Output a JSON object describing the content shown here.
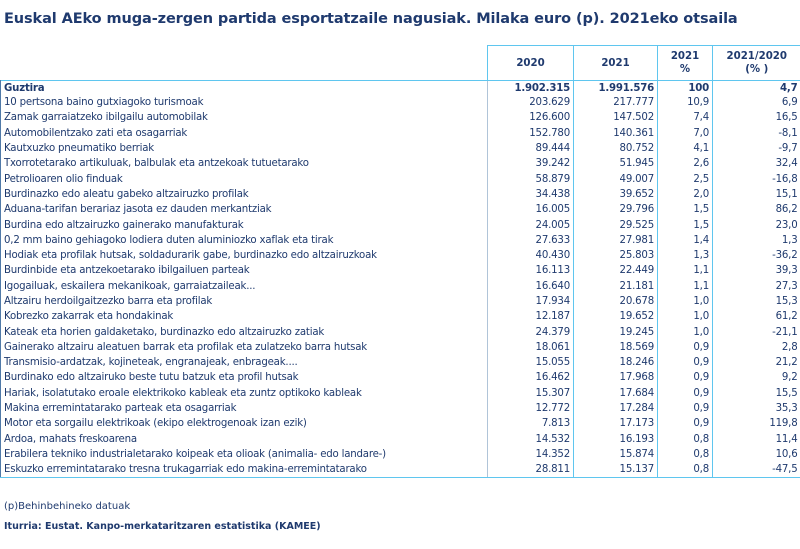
{
  "title": "Euskal AEko muga-zergen partida esportatzaile nagusiak. Milaka euro (p). 2021eko otsaila",
  "columns": [
    "2020",
    "2021",
    "2021\n%",
    "2021/2020\n(% )"
  ],
  "total": {
    "label": "Guztira",
    "v2020": "1.902.315",
    "v2021": "1.991.576",
    "pct": "100",
    "change": "4,7"
  },
  "rows": [
    [
      "10 pertsona baino gutxiagoko turismoak",
      "203.629",
      "217.777",
      "10,9",
      "6,9"
    ],
    [
      "Zamak garraiatzeko ibilgailu automobilak",
      "126.600",
      "147.502",
      "7,4",
      "16,5"
    ],
    [
      "Automobilentzako zati eta osagarriak",
      "152.780",
      "140.361",
      "7,0",
      "-8,1"
    ],
    [
      "Kautxuzko pneumatiko berriak",
      "89.444",
      "80.752",
      "4,1",
      "-9,7"
    ],
    [
      "Txorrotetarako artikuluak, balbulak eta antzekoak tutuetarako",
      "39.242",
      "51.945",
      "2,6",
      "32,4"
    ],
    [
      "Petrolioaren olio finduak",
      "58.879",
      "49.007",
      "2,5",
      "-16,8"
    ],
    [
      "Burdinazko edo aleatu gabeko altzairuzko profilak",
      "34.438",
      "39.652",
      "2,0",
      "15,1"
    ],
    [
      "Aduana-tarifan berariaz jasota ez dauden merkantziak",
      "16.005",
      "29.796",
      "1,5",
      "86,2"
    ],
    [
      "Burdina edo altzairuzko gainerako manufakturak",
      "24.005",
      "29.525",
      "1,5",
      "23,0"
    ],
    [
      "0,2 mm baino gehiagoko lodiera duten aluminiozko xaflak eta tirak",
      "27.633",
      "27.981",
      "1,4",
      "1,3"
    ],
    [
      "Hodiak eta profilak hutsak, soldadurarik gabe, burdinazko edo altzairuzkoak",
      "40.430",
      "25.803",
      "1,3",
      "-36,2"
    ],
    [
      "Burdinbide eta antzekoetarako ibilgailuen parteak",
      "16.113",
      "22.449",
      "1,1",
      "39,3"
    ],
    [
      "Igogailuak, eskailera mekanikoak, garraiatzaileak...",
      "16.640",
      "21.181",
      "1,1",
      "27,3"
    ],
    [
      "Altzairu herdoilgaitzezko barra eta profilak",
      "17.934",
      "20.678",
      "1,0",
      "15,3"
    ],
    [
      "Kobrezko zakarrak eta hondakinak",
      "12.187",
      "19.652",
      "1,0",
      "61,2"
    ],
    [
      "Kateak eta horien galdaketako, burdinazko edo altzairuzko zatiak",
      "24.379",
      "19.245",
      "1,0",
      "-21,1"
    ],
    [
      "Gainerako altzairu aleatuen barrak eta profilak eta zulatzeko barra hutsak",
      "18.061",
      "18.569",
      "0,9",
      "2,8"
    ],
    [
      "Transmisio-ardatzak, kojineteak, engranajeak, enbrageak....",
      "15.055",
      "18.246",
      "0,9",
      "21,2"
    ],
    [
      "Burdinako edo altzairuko beste tutu batzuk eta profil hutsak",
      "16.462",
      "17.968",
      "0,9",
      "9,2"
    ],
    [
      "Hariak, isolatutako eroale elektrikoko kableak eta zuntz optikoko kableak",
      "15.307",
      "17.684",
      "0,9",
      "15,5"
    ],
    [
      "Makina erremintatarako parteak eta osagarriak",
      "12.772",
      "17.284",
      "0,9",
      "35,3"
    ],
    [
      "Motor eta sorgailu elektrikoak (ekipo elektrogenoak izan ezik)",
      "7.813",
      "17.173",
      "0,9",
      "119,8"
    ],
    [
      "Ardoa, mahats freskoarena",
      "14.532",
      "16.193",
      "0,8",
      "11,4"
    ],
    [
      "Erabilera tekniko industrialetarako koipeak eta olioak (animalia- edo landare-)",
      "14.352",
      "15.874",
      "0,8",
      "10,6"
    ],
    [
      "Eskuzko erremintatarako tresna trukagarriak edo  makina-erremintatarako",
      "28.811",
      "15.137",
      "0,8",
      "-47,5"
    ]
  ],
  "note": "(p)Behinbehineko datuak",
  "source": "Iturria: Eustat. Kanpo-merkataritzaren estatistika (KAMEE)"
}
